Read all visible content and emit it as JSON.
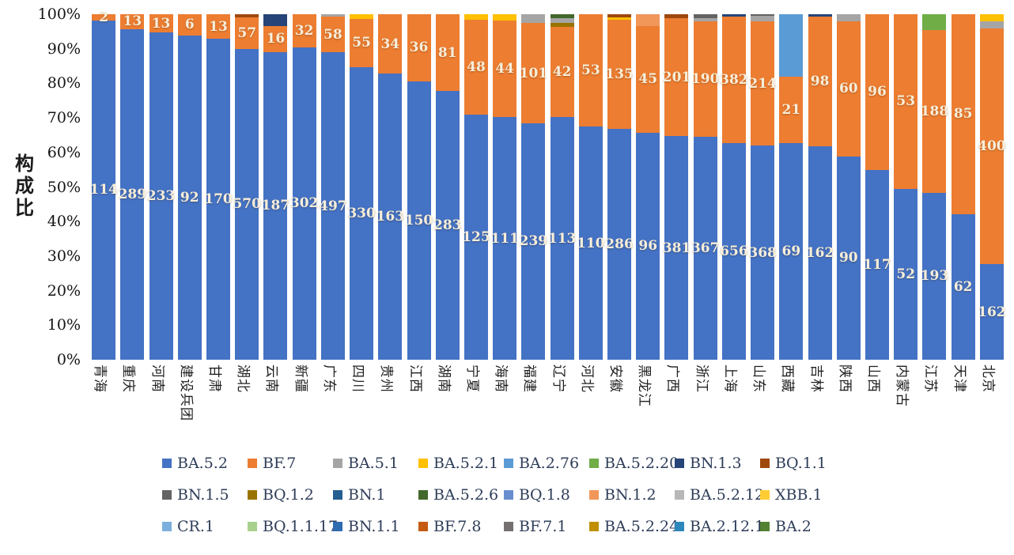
{
  "y_axis": {
    "title": "构\n成\n比",
    "ticks": [
      "100%",
      "90%",
      "80%",
      "70%",
      "60%",
      "50%",
      "40%",
      "30%",
      "20%",
      "10%",
      "0%"
    ]
  },
  "legend": {
    "rows": [
      [
        {
          "label": "BA.5.2",
          "color": "#4472C4"
        },
        {
          "label": "BF.7",
          "color": "#ED7D31"
        },
        {
          "label": "BA.5.1",
          "color": "#A5A5A5"
        },
        {
          "label": "BA.5.2.1",
          "color": "#FFC000"
        },
        {
          "label": "BA.2.76",
          "color": "#5B9BD5"
        },
        {
          "label": "BA.5.2.20",
          "color": "#70AD47"
        },
        {
          "label": "BN.1.3",
          "color": "#264478"
        },
        {
          "label": "BQ.1.1",
          "color": "#9E480E"
        }
      ],
      [
        {
          "label": "BN.1.5",
          "color": "#636363"
        },
        {
          "label": "BQ.1.2",
          "color": "#997300"
        },
        {
          "label": "BN.1",
          "color": "#255E91"
        },
        {
          "label": "BA.5.2.6",
          "color": "#43682B"
        },
        {
          "label": "BQ.1.8",
          "color": "#698ED0"
        },
        {
          "label": "BN.1.2",
          "color": "#F1975A"
        },
        {
          "label": "BA.5.2.12",
          "color": "#B7B7B7"
        },
        {
          "label": "XBB.1",
          "color": "#FFCD33"
        }
      ],
      [
        {
          "label": "CR.1",
          "color": "#7CAFDD"
        },
        {
          "label": "BQ.1.1.17",
          "color": "#A9D18E"
        },
        {
          "label": "BN.1.1",
          "color": "#2E6CB0"
        },
        {
          "label": "BF.7.8",
          "color": "#C55A11"
        },
        {
          "label": "BF.7.1",
          "color": "#757171"
        },
        {
          "label": "BA.5.2.24",
          "color": "#BF8F00"
        },
        {
          "label": "BA.2.12.1",
          "color": "#2D87BB"
        },
        {
          "label": "BA.2",
          "color": "#548235"
        }
      ]
    ]
  },
  "chart_data": {
    "type": "bar",
    "subtype": "stacked-100pct",
    "ylabel": "构成比",
    "ylim": [
      0,
      100
    ],
    "y_tick_step_pct": 10,
    "legend_position": "bottom",
    "grid": false,
    "categories": [
      "青海",
      "重庆",
      "河南",
      "建设兵团",
      "甘肃",
      "湖北",
      "云南",
      "新疆",
      "广东",
      "四川",
      "贵州",
      "江西",
      "湖南",
      "宁夏",
      "海南",
      "福建",
      "辽宁",
      "河北",
      "安徽",
      "黑龙江",
      "广西",
      "浙江",
      "上海",
      "山东",
      "西藏",
      "吉林",
      "陕西",
      "山西",
      "内蒙古",
      "江苏",
      "天津",
      "北京"
    ],
    "bars": [
      {
        "name": "青海",
        "segments": [
          {
            "series": "BA.5.2",
            "value": 114,
            "show": "114"
          },
          {
            "series": "BF.7",
            "value": 2,
            "show": "2"
          }
        ]
      },
      {
        "name": "重庆",
        "segments": [
          {
            "series": "BA.5.2",
            "value": 289,
            "show": "289"
          },
          {
            "series": "BF.7",
            "value": 13,
            "show": "13"
          }
        ]
      },
      {
        "name": "河南",
        "segments": [
          {
            "series": "BA.5.2",
            "value": 233,
            "show": "233"
          },
          {
            "series": "BF.7",
            "value": 13,
            "show": "13"
          }
        ]
      },
      {
        "name": "建设兵团",
        "segments": [
          {
            "series": "BA.5.2",
            "value": 92,
            "show": "92"
          },
          {
            "series": "BF.7",
            "value": 6,
            "show": "6"
          }
        ]
      },
      {
        "name": "甘肃",
        "segments": [
          {
            "series": "BA.5.2",
            "value": 170,
            "show": "170"
          },
          {
            "series": "BF.7",
            "value": 13,
            "show": "13"
          }
        ]
      },
      {
        "name": "湖北",
        "segments": [
          {
            "series": "BA.5.2",
            "value": 570,
            "show": "570"
          },
          {
            "series": "BF.7",
            "value": 57,
            "show": "57"
          },
          {
            "series": "BQ.1.1",
            "value": 6
          }
        ]
      },
      {
        "name": "云南",
        "segments": [
          {
            "series": "BA.5.2",
            "value": 187,
            "show": "187"
          },
          {
            "series": "BF.7",
            "value": 16,
            "show": "16"
          },
          {
            "series": "BN.1.3",
            "value": 7
          }
        ]
      },
      {
        "name": "新疆",
        "segments": [
          {
            "series": "BA.5.2",
            "value": 302,
            "show": "302"
          },
          {
            "series": "BF.7",
            "value": 32,
            "show": "32"
          }
        ]
      },
      {
        "name": "广东",
        "segments": [
          {
            "series": "BA.5.2",
            "value": 497,
            "show": "497"
          },
          {
            "series": "BF.7",
            "value": 58,
            "show": "58"
          },
          {
            "series": "BA.5.1",
            "value": 4
          }
        ]
      },
      {
        "name": "四川",
        "segments": [
          {
            "series": "BA.5.2",
            "value": 330,
            "show": "330"
          },
          {
            "series": "BF.7",
            "value": 55,
            "show": "55"
          },
          {
            "series": "BA.5.2.1",
            "value": 5
          }
        ]
      },
      {
        "name": "贵州",
        "segments": [
          {
            "series": "BA.5.2",
            "value": 163,
            "show": "163"
          },
          {
            "series": "BF.7",
            "value": 34,
            "show": "34"
          }
        ]
      },
      {
        "name": "江西",
        "segments": [
          {
            "series": "BA.5.2",
            "value": 150,
            "show": "150"
          },
          {
            "series": "BF.7",
            "value": 36,
            "show": "36"
          }
        ]
      },
      {
        "name": "湖南",
        "segments": [
          {
            "series": "BA.5.2",
            "value": 283,
            "show": "283"
          },
          {
            "series": "BF.7",
            "value": 81,
            "show": "81"
          }
        ]
      },
      {
        "name": "宁夏",
        "segments": [
          {
            "series": "BA.5.2",
            "value": 125,
            "show": "125"
          },
          {
            "series": "BF.7",
            "value": 48,
            "show": "48"
          },
          {
            "series": "BA.5.2.1",
            "value": 3
          }
        ]
      },
      {
        "name": "海南",
        "segments": [
          {
            "series": "BA.5.2",
            "value": 111,
            "show": "111"
          },
          {
            "series": "BF.7",
            "value": 44,
            "show": "44"
          },
          {
            "series": "BA.5.2.1",
            "value": 3
          }
        ]
      },
      {
        "name": "福建",
        "segments": [
          {
            "series": "BA.5.2",
            "value": 239,
            "show": "239"
          },
          {
            "series": "BF.7",
            "value": 101,
            "show": "101"
          },
          {
            "series": "BA.5.1",
            "value": 9
          }
        ]
      },
      {
        "name": "辽宁",
        "segments": [
          {
            "series": "BA.5.2",
            "value": 113,
            "show": "113"
          },
          {
            "series": "BF.7",
            "value": 42,
            "show": "42"
          },
          {
            "series": "BQ.1.2",
            "value": 2
          },
          {
            "series": "BA.5.1",
            "value": 2
          },
          {
            "series": "BA.5.2.6",
            "value": 2
          }
        ]
      },
      {
        "name": "河北",
        "segments": [
          {
            "series": "BA.5.2",
            "value": 110,
            "show": "110"
          },
          {
            "series": "BF.7",
            "value": 53,
            "show": "53"
          }
        ]
      },
      {
        "name": "安徽",
        "segments": [
          {
            "series": "BA.5.2",
            "value": 286,
            "show": "286"
          },
          {
            "series": "BF.7",
            "value": 135,
            "show": "135"
          },
          {
            "series": "BA.5.2.1",
            "value": 3
          },
          {
            "series": "BQ.1.1",
            "value": 4
          }
        ]
      },
      {
        "name": "黑龙江",
        "segments": [
          {
            "series": "BA.5.2",
            "value": 96,
            "show": "96"
          },
          {
            "series": "BF.7",
            "value": 45,
            "show": "45"
          },
          {
            "series": "BN.1.2",
            "value": 5
          }
        ]
      },
      {
        "name": "广西",
        "segments": [
          {
            "series": "BA.5.2",
            "value": 381,
            "show": "381"
          },
          {
            "series": "BF.7",
            "value": 201,
            "show": "201"
          },
          {
            "series": "BQ.1.1",
            "value": 7
          }
        ]
      },
      {
        "name": "浙江",
        "segments": [
          {
            "series": "BA.5.2",
            "value": 367,
            "show": "367"
          },
          {
            "series": "BF.7",
            "value": 190,
            "show": "190"
          },
          {
            "series": "BA.5.1",
            "value": 6
          },
          {
            "series": "BN.1.5",
            "value": 6
          }
        ]
      },
      {
        "name": "上海",
        "segments": [
          {
            "series": "BA.5.2",
            "value": 656,
            "show": "656"
          },
          {
            "series": "BF.7",
            "value": 382,
            "show": "382"
          },
          {
            "series": "BN.1.3",
            "value": 8
          }
        ]
      },
      {
        "name": "山东",
        "segments": [
          {
            "series": "BA.5.2",
            "value": 368,
            "show": "368"
          },
          {
            "series": "BF.7",
            "value": 214,
            "show": "214"
          },
          {
            "series": "BA.5.1",
            "value": 9
          },
          {
            "series": "BN.1.5",
            "value": 3
          }
        ]
      },
      {
        "name": "西藏",
        "segments": [
          {
            "series": "BA.5.2",
            "value": 69,
            "show": "69"
          },
          {
            "series": "BF.7",
            "value": 21,
            "show": "21"
          },
          {
            "series": "BA.2.76",
            "value": 20
          }
        ]
      },
      {
        "name": "吉林",
        "segments": [
          {
            "series": "BA.5.2",
            "value": 162,
            "show": "162"
          },
          {
            "series": "BF.7",
            "value": 98,
            "show": "98"
          },
          {
            "series": "BN.1.3",
            "value": 2
          }
        ]
      },
      {
        "name": "陕西",
        "segments": [
          {
            "series": "BA.5.2",
            "value": 90,
            "show": "90"
          },
          {
            "series": "BF.7",
            "value": 60,
            "show": "60"
          },
          {
            "series": "BA.5.1",
            "value": 3
          }
        ]
      },
      {
        "name": "山西",
        "segments": [
          {
            "series": "BA.5.2",
            "value": 117,
            "show": "117"
          },
          {
            "series": "BF.7",
            "value": 96,
            "show": "96"
          }
        ]
      },
      {
        "name": "内蒙古",
        "segments": [
          {
            "series": "BA.5.2",
            "value": 52,
            "show": "52"
          },
          {
            "series": "BF.7",
            "value": 53,
            "show": "53"
          }
        ]
      },
      {
        "name": "江苏",
        "segments": [
          {
            "series": "BA.5.2",
            "value": 193,
            "show": "193"
          },
          {
            "series": "BF.7",
            "value": 188,
            "show": "188"
          },
          {
            "series": "BA.5.2.20",
            "value": 18
          }
        ]
      },
      {
        "name": "天津",
        "segments": [
          {
            "series": "BA.5.2",
            "value": 62,
            "show": "62"
          },
          {
            "series": "BF.7",
            "value": 85,
            "show": "85"
          }
        ]
      },
      {
        "name": "北京",
        "segments": [
          {
            "series": "BA.5.2",
            "value": 162,
            "show": "162"
          },
          {
            "series": "BF.7",
            "value": 400,
            "show": "400"
          },
          {
            "series": "BA.5.1",
            "value": 12
          },
          {
            "series": "BA.5.2.1",
            "value": 12
          }
        ]
      }
    ]
  }
}
